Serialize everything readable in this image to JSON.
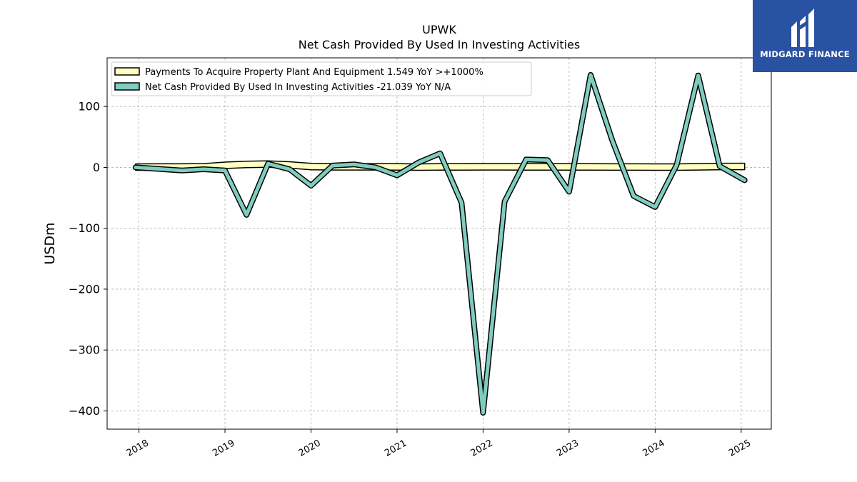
{
  "chart_data": {
    "type": "area",
    "title": "UPWK",
    "subtitle": "Net Cash Provided By Used In Investing Activities",
    "ylabel": "USDm",
    "xlabel": "",
    "xlim": [
      2017.63,
      2025.35
    ],
    "ylim": [
      -430,
      180
    ],
    "y_ticks": [
      100,
      0,
      -100,
      -200,
      -300,
      -400
    ],
    "y_tick_labels": [
      "100",
      "0",
      "−100",
      "−200",
      "−300",
      "−400"
    ],
    "x_ticks": [
      2018,
      2019,
      2020,
      2021,
      2022,
      2023,
      2024,
      2025
    ],
    "x_tick_labels": [
      "2018",
      "2019",
      "2020",
      "2021",
      "2022",
      "2023",
      "2024",
      "2025"
    ],
    "grid": true,
    "legend_position": "top-left",
    "series": [
      {
        "name": "Payments To Acquire Property Plant And Equipment",
        "legend_label": "Payments To Acquire Property Plant And Equipment  1.549 YoY >+1000%",
        "color": "#ffffc0",
        "style": "band",
        "x": [
          2017.96,
          2018.25,
          2018.5,
          2018.75,
          2019.0,
          2019.25,
          2019.5,
          2019.75,
          2020.0,
          2020.25,
          2020.5,
          2020.75,
          2021.0,
          2021.25,
          2021.5,
          2021.75,
          2022.0,
          2022.25,
          2022.5,
          2022.75,
          2023.0,
          2023.25,
          2023.5,
          2023.75,
          2024.0,
          2024.25,
          2024.5,
          2024.75,
          2025.04
        ],
        "values": [
          0.5,
          0.6,
          0.6,
          1.0,
          3.5,
          5.0,
          5.5,
          4.0,
          1.5,
          1.0,
          1.0,
          1.0,
          0.8,
          0.5,
          0.7,
          0.9,
          1.0,
          1.0,
          0.8,
          0.8,
          0.7,
          0.7,
          0.6,
          0.6,
          0.5,
          0.5,
          1.0,
          1.5,
          1.549
        ]
      },
      {
        "name": "Net Cash Provided By Used In Investing Activities",
        "legend_label": "Net Cash Provided By Used In Investing Activities  -21.039 YoY N/A",
        "color": "#7ecdbf",
        "style": "line",
        "x": [
          2017.96,
          2018.5,
          2018.75,
          2019.0,
          2019.25,
          2019.5,
          2019.75,
          2020.0,
          2020.25,
          2020.5,
          2020.75,
          2021.0,
          2021.25,
          2021.5,
          2021.75,
          2022.0,
          2022.25,
          2022.5,
          2022.75,
          2023.0,
          2023.25,
          2023.5,
          2023.75,
          2024.0,
          2024.25,
          2024.5,
          2024.75,
          2025.04
        ],
        "values": [
          0,
          -5,
          -3,
          -5,
          -78,
          6,
          -3,
          -30,
          3,
          5,
          0,
          -13,
          8,
          23,
          -58,
          -403,
          -56,
          13,
          12,
          -40,
          152,
          45,
          -47,
          -65,
          4,
          151,
          2,
          -21.039
        ]
      }
    ]
  },
  "logo": {
    "text": "MIDGARD FINANCE"
  }
}
